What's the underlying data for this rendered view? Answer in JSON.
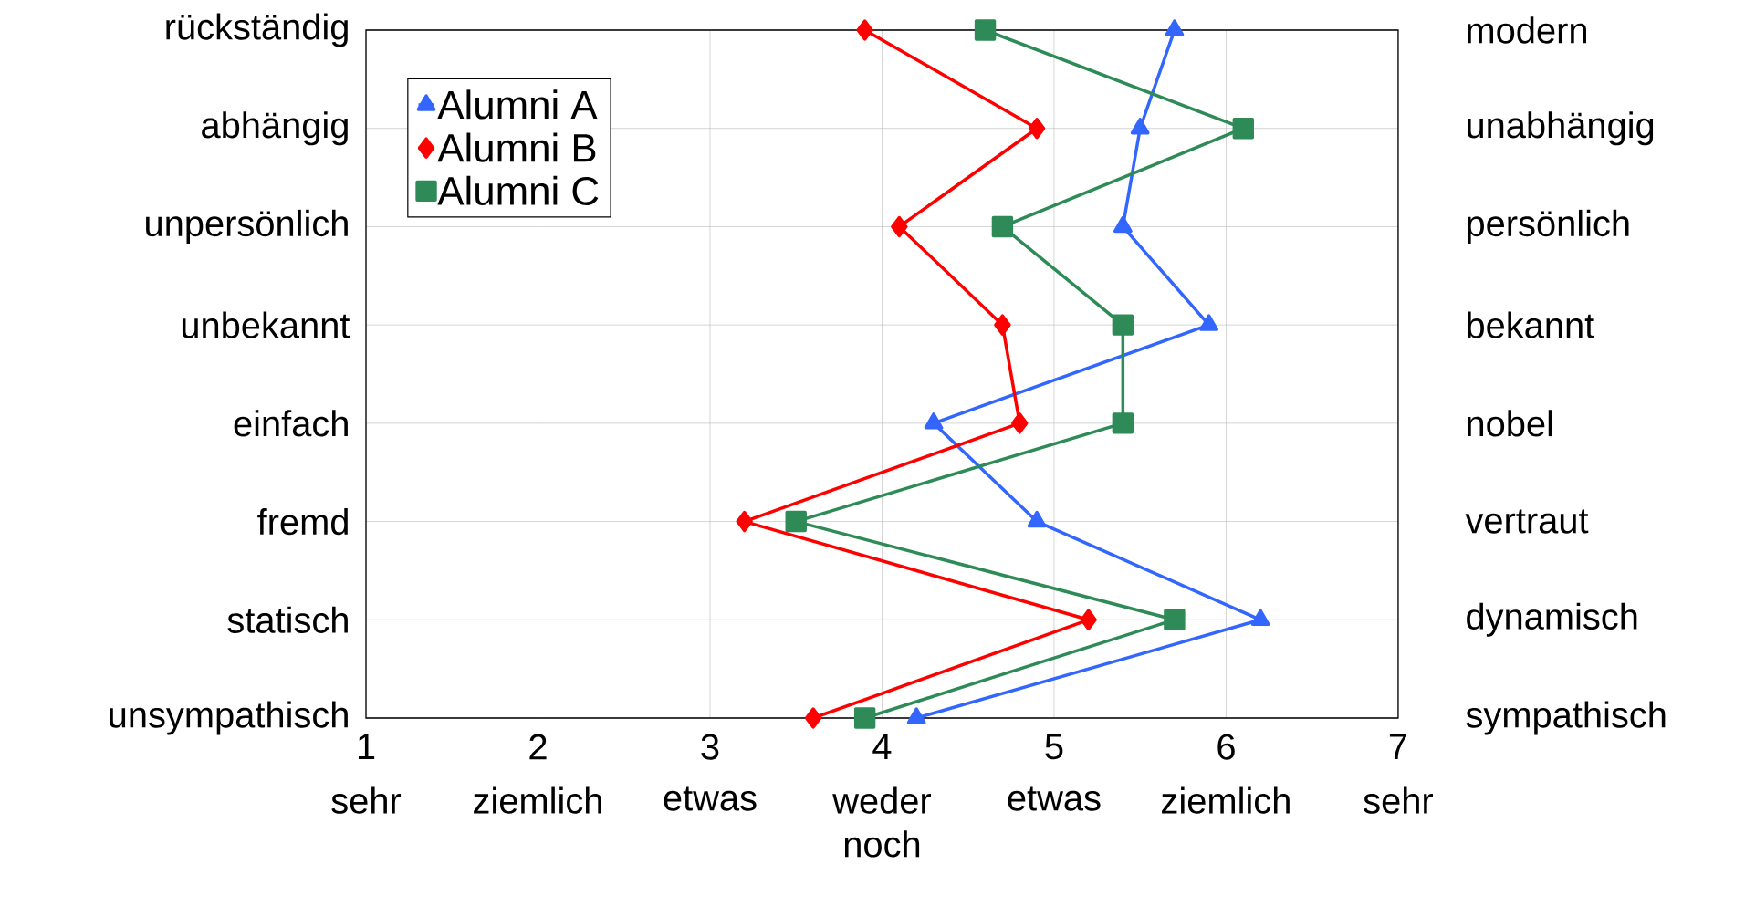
{
  "chart_data": {
    "type": "line",
    "orientation": "horizontal",
    "categories": [
      "rückständig",
      "abhängig",
      "unpersönlich",
      "unbekannt",
      "einfach",
      "fremd",
      "statisch",
      "unsympathisch"
    ],
    "y2_categories": [
      "modern",
      "unabhängig",
      "persönlich",
      "bekannt",
      "nobel",
      "vertraut",
      "dynamisch",
      "sympathisch"
    ],
    "xlim": [
      1,
      7
    ],
    "xticks": [
      1,
      2,
      3,
      4,
      5,
      6,
      7
    ],
    "annotations": [
      "sehr",
      "ziemlich",
      "etwas",
      "weder noch",
      "etwas",
      "ziemlich",
      "sehr"
    ],
    "series": [
      {
        "name": "Alumni A",
        "color": "#3366ff",
        "marker": "triangle",
        "values": [
          5.7,
          5.5,
          5.4,
          5.9,
          4.3,
          4.9,
          6.2,
          4.2
        ]
      },
      {
        "name": "Alumni B",
        "color": "#ff0000",
        "marker": "diamond",
        "values": [
          3.9,
          4.9,
          4.1,
          4.7,
          4.8,
          3.2,
          5.2,
          3.6
        ]
      },
      {
        "name": "Alumni C",
        "color": "#2e8b57",
        "marker": "square",
        "values": [
          4.6,
          6.1,
          4.7,
          5.4,
          5.4,
          3.5,
          5.7,
          3.9
        ]
      }
    ],
    "grid": true,
    "legend": "top left",
    "line_style": "solid"
  }
}
